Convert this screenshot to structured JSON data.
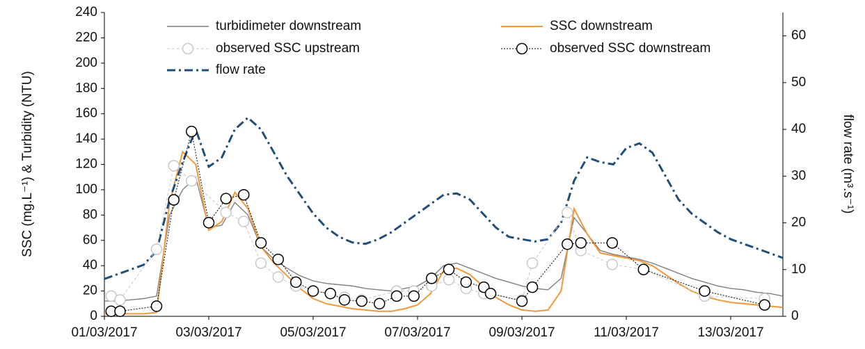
{
  "chart_data": {
    "type": "line",
    "y_label": "SSC (mg.L⁻¹) & Turbidity (NTU)",
    "y2_label": "flow rate (m³.s⁻¹)",
    "xlim": [
      0,
      13
    ],
    "xticks": [
      {
        "value": 0,
        "label": "01/03/2017"
      },
      {
        "value": 2,
        "label": "03/03/2017"
      },
      {
        "value": 4,
        "label": "05/03/2017"
      },
      {
        "value": 6,
        "label": "07/03/2017"
      },
      {
        "value": 8,
        "label": "09/03/2017"
      },
      {
        "value": 10,
        "label": "11/03/2017"
      },
      {
        "value": 12,
        "label": "13/03/2017"
      }
    ],
    "ylim": [
      0,
      240
    ],
    "yticks": [
      0,
      20,
      40,
      60,
      80,
      100,
      120,
      140,
      160,
      180,
      200,
      220,
      240
    ],
    "y2lim": [
      0,
      65
    ],
    "y2ticks": [
      0,
      10,
      20,
      30,
      40,
      50,
      60
    ],
    "x": [
      0,
      0.25,
      0.5,
      0.75,
      1,
      1.25,
      1.5,
      1.75,
      2,
      2.25,
      2.5,
      2.75,
      3,
      3.25,
      3.5,
      3.75,
      4,
      4.25,
      4.5,
      4.75,
      5,
      5.25,
      5.5,
      5.75,
      6,
      6.25,
      6.5,
      6.75,
      7,
      7.25,
      7.5,
      7.75,
      8,
      8.25,
      8.5,
      8.75,
      9,
      9.25,
      9.5,
      9.75,
      10,
      10.25,
      10.5,
      10.75,
      11,
      11.25,
      11.5,
      11.75,
      12,
      12.25,
      12.5,
      12.75,
      13
    ],
    "series": [
      {
        "name": "turbidimeter downstream",
        "color": "#7f7f7f",
        "style": "solid",
        "values": [
          12,
          12,
          13,
          14,
          16,
          80,
          100,
          110,
          70,
          72,
          90,
          80,
          55,
          45,
          38,
          32,
          28,
          26,
          25,
          24,
          22,
          21,
          20,
          22,
          24,
          30,
          40,
          42,
          38,
          34,
          30,
          27,
          24,
          22,
          21,
          30,
          78,
          65,
          52,
          49,
          47,
          45,
          42,
          38,
          34,
          30,
          27,
          24,
          22,
          21,
          19,
          18,
          16
        ]
      },
      {
        "name": "SSC downstream",
        "color": "#f4973a",
        "style": "solid",
        "values": [
          2,
          2,
          2,
          2,
          3,
          90,
          130,
          120,
          68,
          75,
          98,
          85,
          55,
          42,
          32,
          22,
          14,
          10,
          8,
          6,
          5,
          4,
          4,
          6,
          9,
          18,
          36,
          38,
          33,
          24,
          15,
          9,
          5,
          4,
          5,
          20,
          85,
          65,
          50,
          48,
          46,
          44,
          40,
          33,
          26,
          20,
          16,
          13,
          11,
          10,
          9,
          8,
          7
        ]
      },
      {
        "name": "observed SSC upstream",
        "color": "#c8c8c8",
        "style": "markers",
        "x": [
          0.13,
          0.3,
          1,
          1.33,
          1.67,
          2.33,
          2.67,
          3,
          3.33,
          3.67,
          4,
          4.33,
          4.6,
          4.93,
          5.6,
          5.93,
          6.27,
          6.6,
          6.93,
          7.27,
          8,
          8.2,
          8.87,
          9.13,
          9.73,
          10.33,
          11.5,
          12.65
        ],
        "values": [
          16,
          13,
          53,
          119,
          107,
          82,
          75,
          42,
          31,
          24,
          20,
          18,
          15,
          13,
          20,
          20,
          24,
          29,
          22,
          18,
          13,
          42,
          82,
          52,
          41,
          37,
          16,
          14
        ]
      },
      {
        "name": "observed SSC downstream",
        "color": "#000000",
        "style": "markers",
        "x": [
          0.13,
          0.3,
          1,
          1.33,
          1.67,
          2,
          2.33,
          2.67,
          3,
          3.33,
          3.67,
          4,
          4.33,
          4.6,
          4.93,
          5.27,
          5.6,
          5.93,
          6.27,
          6.6,
          6.93,
          7.27,
          7.4,
          8,
          8.2,
          8.87,
          9.13,
          9.73,
          10.33,
          11.5,
          12.65
        ],
        "values": [
          4,
          4,
          8,
          92,
          146,
          74,
          93,
          96,
          58,
          45,
          27,
          20,
          18,
          13,
          12,
          10,
          16,
          16,
          30,
          37,
          27,
          23,
          18,
          12,
          23,
          57,
          58,
          58,
          37,
          20,
          9
        ]
      },
      {
        "name": "flow rate",
        "color": "#1f4e79",
        "style": "dashdot",
        "axis": "y2",
        "values": [
          8,
          9,
          10,
          11,
          14,
          25,
          33,
          40,
          32,
          34,
          40,
          42.5,
          40,
          35,
          30,
          26,
          22,
          19,
          17,
          15.8,
          15.5,
          16.5,
          18,
          20,
          22,
          24,
          26,
          26.3,
          25,
          22,
          19,
          17,
          16.5,
          16,
          16.5,
          20,
          29,
          34,
          33,
          32.5,
          36,
          37,
          35,
          30,
          25,
          22,
          20,
          18,
          16.5,
          15.5,
          14.5,
          13.5,
          12.5
        ]
      }
    ]
  }
}
